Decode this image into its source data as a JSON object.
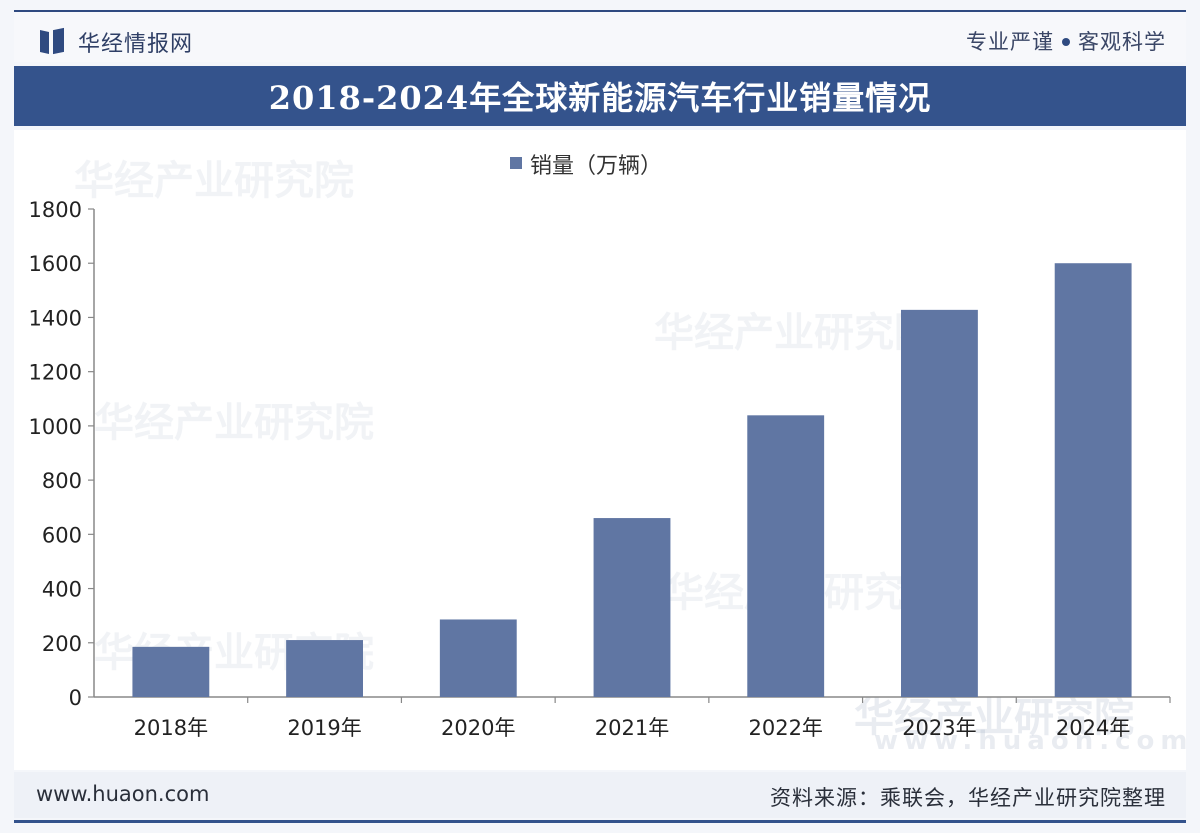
{
  "header": {
    "brand": "华经情报网",
    "slogan_left": "专业严谨",
    "slogan_right": "客观科学"
  },
  "watermark": {
    "text": "华经产业研究院",
    "url_text": "www.huaon.com"
  },
  "chart_data": {
    "type": "bar",
    "title": "2018-2024年全球新能源汽车行业销量情况",
    "categories": [
      "2018年",
      "2019年",
      "2020年",
      "2021年",
      "2022年",
      "2023年",
      "2024年"
    ],
    "series": [
      {
        "name": "销量（万辆）",
        "values": [
          185,
          210,
          286,
          660,
          1039,
          1428,
          1600
        ],
        "color": "#6076a3"
      }
    ],
    "ylim": [
      0,
      1800
    ],
    "yticks": [
      0,
      200,
      400,
      600,
      800,
      1000,
      1200,
      1400,
      1600,
      1800
    ],
    "legend_position": "top-center",
    "grid": false
  },
  "footer": {
    "url": "www.huaon.com",
    "source": "资料来源：乘联会，华经产业研究院整理"
  },
  "colors": {
    "accent": "#34538c",
    "bar": "#6076a3"
  }
}
